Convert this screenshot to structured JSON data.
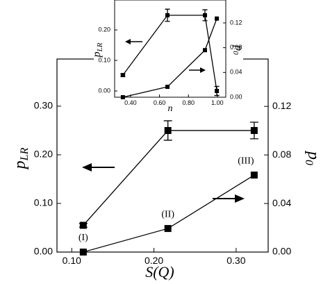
{
  "chart_data": [
    {
      "type": "line",
      "xlabel": "S(Q)",
      "ylabel": [
        "p",
        "LR"
      ],
      "y2label": [
        "p",
        "0"
      ],
      "x": [
        0.114,
        0.217,
        0.322
      ],
      "xlim": [
        0.082,
        0.339
      ],
      "xticks": [
        {
          "value": 0.1,
          "label": "0.10"
        },
        {
          "value": 0.2,
          "label": "0.20"
        },
        {
          "value": 0.3,
          "label": "0.30"
        }
      ],
      "ylim": [
        0,
        0.397
      ],
      "yticks": [
        {
          "value": 0,
          "label": "0.00"
        },
        {
          "value": 0.1,
          "label": "0.10"
        },
        {
          "value": 0.2,
          "label": "0.20"
        },
        {
          "value": 0.3,
          "label": "0.30"
        }
      ],
      "y2lim": [
        0,
        0.159
      ],
      "y2ticks": [
        {
          "value": 0,
          "label": "0.00"
        },
        0.04,
        0.08,
        0.12
      ],
      "series": [
        {
          "color": "#000000",
          "values": [
            0.055,
            0.25,
            0.25
          ],
          "errors": [
            0.004,
            0.02,
            0.017
          ]
        },
        {
          "color": "#000000",
          "values": [
            0,
            0.0194,
            0.0634
          ],
          "axis": "y2"
        }
      ],
      "annotations": [
        "(I)",
        "(II)",
        "(III)"
      ]
    },
    {
      "type": "line",
      "xlabel": "n",
      "ylabel": [
        "p",
        "LR"
      ],
      "y2label": [
        "p",
        "0"
      ],
      "x": [
        0.347,
        0.655,
        0.914,
        0.996
      ],
      "xlim": [
        0.29,
        1.058
      ],
      "xticks": [
        {
          "value": 0.4,
          "label": "0.40"
        },
        {
          "value": 0.6,
          "label": "0.60"
        },
        {
          "value": 0.8,
          "label": "0.80"
        },
        {
          "value": 1.0,
          "label": "1.00"
        }
      ],
      "ylim": [
        -0.0205,
        0.298
      ],
      "yticks": [
        {
          "value": 0,
          "label": "0.00"
        },
        {
          "value": 0.1,
          "label": "0.10"
        },
        {
          "value": 0.2,
          "label": "0.20"
        }
      ],
      "y2lim": [
        0,
        0.157
      ],
      "y2ticks": [
        {
          "value": 0,
          "label": "0.00"
        },
        0.04,
        0.08,
        0.12
      ],
      "series": [
        {
          "color": "#000000",
          "values": [
            0.052,
            0.248,
            0.248,
            0.0
          ],
          "errors": [
            0.004,
            0.02,
            0.018,
            0.015
          ]
        },
        {
          "color": "#000000",
          "values": [
            0,
            0.0168,
            0.076,
            0.127
          ],
          "axis": "y2"
        }
      ]
    }
  ]
}
